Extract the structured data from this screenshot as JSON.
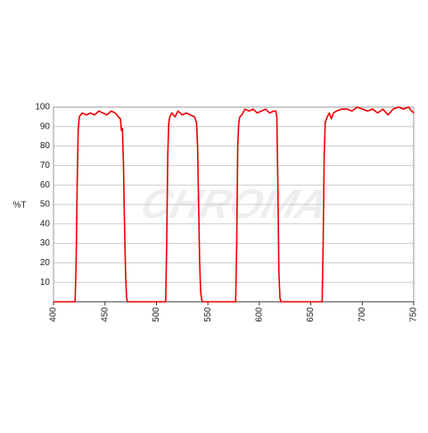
{
  "chart_data": {
    "type": "line",
    "y_label": "%T",
    "watermark": "CHROMA",
    "x": [
      400,
      421,
      422,
      423,
      424,
      425,
      428,
      432,
      436,
      440,
      444,
      448,
      452,
      456,
      460,
      463,
      465,
      466,
      467,
      468,
      469,
      470,
      471,
      472,
      475,
      480,
      500,
      509,
      510,
      511,
      512,
      513,
      515,
      518,
      521,
      525,
      529,
      533,
      537,
      539,
      540,
      541,
      542,
      543,
      544,
      545,
      550,
      570,
      577,
      578,
      579,
      580,
      581,
      583,
      586,
      590,
      594,
      598,
      602,
      606,
      610,
      614,
      616,
      617,
      618,
      619,
      620,
      621,
      625,
      640,
      660,
      661,
      662,
      663,
      664,
      666,
      668,
      670,
      672,
      675,
      680,
      685,
      690,
      695,
      700,
      705,
      710,
      715,
      720,
      725,
      730,
      735,
      740,
      745,
      748,
      750
    ],
    "series": [
      {
        "color": "#ee0000",
        "values": [
          0,
          0,
          20,
          60,
          88,
          95,
          97,
          96,
          97,
          96,
          98,
          97,
          96,
          98,
          97,
          95,
          94,
          88,
          89,
          70,
          40,
          15,
          2,
          0,
          0,
          0,
          0,
          0,
          30,
          75,
          92,
          95,
          97,
          95,
          98,
          96,
          97,
          96,
          95,
          92,
          80,
          50,
          20,
          5,
          1,
          0,
          0,
          0,
          0,
          30,
          80,
          92,
          95,
          96,
          99,
          98,
          99,
          97,
          98,
          99,
          97,
          98,
          98,
          95,
          60,
          15,
          2,
          0,
          0,
          0,
          0,
          0,
          30,
          75,
          92,
          95,
          97,
          94,
          97,
          98,
          99,
          99,
          98,
          100,
          99,
          98,
          99,
          97,
          99,
          96,
          99,
          100,
          99,
          100,
          98,
          97
        ]
      }
    ],
    "xlim": [
      400,
      750
    ],
    "xticks": [
      400,
      450,
      500,
      550,
      600,
      650,
      700,
      750
    ],
    "ylim": [
      0,
      100
    ],
    "yticks": [
      10,
      20,
      30,
      40,
      50,
      60,
      70,
      80,
      90,
      100
    ],
    "grid": true
  }
}
